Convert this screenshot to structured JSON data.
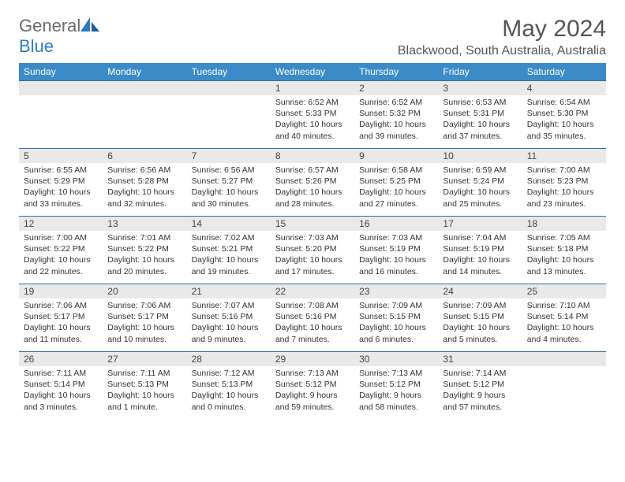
{
  "brand": {
    "part1": "General",
    "part2": "Blue"
  },
  "title": "May 2024",
  "location": "Blackwood, South Australia, Australia",
  "colors": {
    "header_bg": "#3b8bc8",
    "header_text": "#ffffff",
    "row_border": "#2f6fa8",
    "daynum_bg": "#e9e9e9",
    "body_text": "#333333",
    "title_text": "#555555",
    "logo_gray": "#6b6b6b",
    "logo_blue": "#2f7bbf"
  },
  "weekdays": [
    "Sunday",
    "Monday",
    "Tuesday",
    "Wednesday",
    "Thursday",
    "Friday",
    "Saturday"
  ],
  "weeks": [
    [
      null,
      null,
      null,
      {
        "n": "1",
        "sr": "6:52 AM",
        "ss": "5:33 PM",
        "dl": "10 hours and 40 minutes."
      },
      {
        "n": "2",
        "sr": "6:52 AM",
        "ss": "5:32 PM",
        "dl": "10 hours and 39 minutes."
      },
      {
        "n": "3",
        "sr": "6:53 AM",
        "ss": "5:31 PM",
        "dl": "10 hours and 37 minutes."
      },
      {
        "n": "4",
        "sr": "6:54 AM",
        "ss": "5:30 PM",
        "dl": "10 hours and 35 minutes."
      }
    ],
    [
      {
        "n": "5",
        "sr": "6:55 AM",
        "ss": "5:29 PM",
        "dl": "10 hours and 33 minutes."
      },
      {
        "n": "6",
        "sr": "6:56 AM",
        "ss": "5:28 PM",
        "dl": "10 hours and 32 minutes."
      },
      {
        "n": "7",
        "sr": "6:56 AM",
        "ss": "5:27 PM",
        "dl": "10 hours and 30 minutes."
      },
      {
        "n": "8",
        "sr": "6:57 AM",
        "ss": "5:26 PM",
        "dl": "10 hours and 28 minutes."
      },
      {
        "n": "9",
        "sr": "6:58 AM",
        "ss": "5:25 PM",
        "dl": "10 hours and 27 minutes."
      },
      {
        "n": "10",
        "sr": "6:59 AM",
        "ss": "5:24 PM",
        "dl": "10 hours and 25 minutes."
      },
      {
        "n": "11",
        "sr": "7:00 AM",
        "ss": "5:23 PM",
        "dl": "10 hours and 23 minutes."
      }
    ],
    [
      {
        "n": "12",
        "sr": "7:00 AM",
        "ss": "5:22 PM",
        "dl": "10 hours and 22 minutes."
      },
      {
        "n": "13",
        "sr": "7:01 AM",
        "ss": "5:22 PM",
        "dl": "10 hours and 20 minutes."
      },
      {
        "n": "14",
        "sr": "7:02 AM",
        "ss": "5:21 PM",
        "dl": "10 hours and 19 minutes."
      },
      {
        "n": "15",
        "sr": "7:03 AM",
        "ss": "5:20 PM",
        "dl": "10 hours and 17 minutes."
      },
      {
        "n": "16",
        "sr": "7:03 AM",
        "ss": "5:19 PM",
        "dl": "10 hours and 16 minutes."
      },
      {
        "n": "17",
        "sr": "7:04 AM",
        "ss": "5:19 PM",
        "dl": "10 hours and 14 minutes."
      },
      {
        "n": "18",
        "sr": "7:05 AM",
        "ss": "5:18 PM",
        "dl": "10 hours and 13 minutes."
      }
    ],
    [
      {
        "n": "19",
        "sr": "7:06 AM",
        "ss": "5:17 PM",
        "dl": "10 hours and 11 minutes."
      },
      {
        "n": "20",
        "sr": "7:06 AM",
        "ss": "5:17 PM",
        "dl": "10 hours and 10 minutes."
      },
      {
        "n": "21",
        "sr": "7:07 AM",
        "ss": "5:16 PM",
        "dl": "10 hours and 9 minutes."
      },
      {
        "n": "22",
        "sr": "7:08 AM",
        "ss": "5:16 PM",
        "dl": "10 hours and 7 minutes."
      },
      {
        "n": "23",
        "sr": "7:09 AM",
        "ss": "5:15 PM",
        "dl": "10 hours and 6 minutes."
      },
      {
        "n": "24",
        "sr": "7:09 AM",
        "ss": "5:15 PM",
        "dl": "10 hours and 5 minutes."
      },
      {
        "n": "25",
        "sr": "7:10 AM",
        "ss": "5:14 PM",
        "dl": "10 hours and 4 minutes."
      }
    ],
    [
      {
        "n": "26",
        "sr": "7:11 AM",
        "ss": "5:14 PM",
        "dl": "10 hours and 3 minutes."
      },
      {
        "n": "27",
        "sr": "7:11 AM",
        "ss": "5:13 PM",
        "dl": "10 hours and 1 minute."
      },
      {
        "n": "28",
        "sr": "7:12 AM",
        "ss": "5:13 PM",
        "dl": "10 hours and 0 minutes."
      },
      {
        "n": "29",
        "sr": "7:13 AM",
        "ss": "5:12 PM",
        "dl": "9 hours and 59 minutes."
      },
      {
        "n": "30",
        "sr": "7:13 AM",
        "ss": "5:12 PM",
        "dl": "9 hours and 58 minutes."
      },
      {
        "n": "31",
        "sr": "7:14 AM",
        "ss": "5:12 PM",
        "dl": "9 hours and 57 minutes."
      },
      null
    ]
  ],
  "labels": {
    "sunrise": "Sunrise:",
    "sunset": "Sunset:",
    "daylight": "Daylight:"
  }
}
